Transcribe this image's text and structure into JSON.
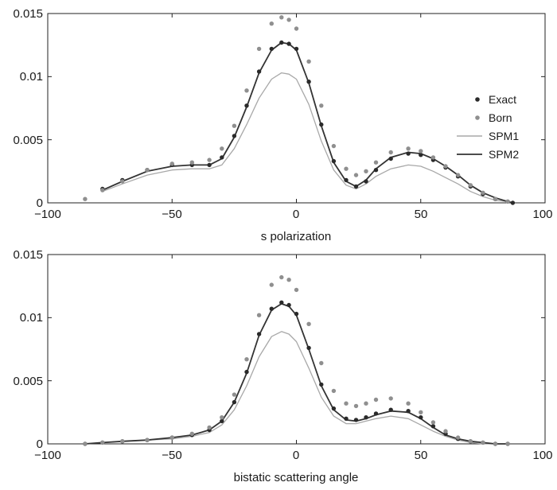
{
  "colors": {
    "exact": "#2a2a2a",
    "born": "#8f8f8f",
    "spm1": "#a8a8a8",
    "spm2": "#333333",
    "axis": "#222222"
  },
  "chart_data": [
    {
      "type": "line",
      "title": "",
      "xlabel": "s polarization",
      "ylabel": "",
      "xlim": [
        -100,
        100
      ],
      "ylim": [
        0,
        0.015
      ],
      "xticks": [
        -100,
        -50,
        0,
        50,
        100
      ],
      "xtick_labels": [
        "−100",
        "−50",
        "0",
        "50",
        "100"
      ],
      "yticks": [
        0,
        0.005,
        0.01,
        0.015
      ],
      "ytick_labels": [
        "0",
        "0.005",
        "0.01",
        "0.015"
      ],
      "grid": false,
      "legend": {
        "placement": "right",
        "entries": [
          "Exact",
          "Born",
          "SPM1",
          "SPM2"
        ]
      },
      "series": [
        {
          "name": "Exact",
          "style": "points",
          "color": "#2a2a2a",
          "x": [
            -78,
            -70,
            -60,
            -50,
            -42,
            -35,
            -30,
            -25,
            -20,
            -15,
            -10,
            -6,
            -3,
            0,
            5,
            10,
            15,
            20,
            24,
            28,
            32,
            38,
            45,
            50,
            55,
            60,
            65,
            70,
            75,
            80,
            85,
            87
          ],
          "y": [
            0.0011,
            0.0018,
            0.0026,
            0.003,
            0.003,
            0.003,
            0.0036,
            0.0053,
            0.0077,
            0.0104,
            0.0122,
            0.0127,
            0.0126,
            0.0122,
            0.0096,
            0.0062,
            0.0033,
            0.0018,
            0.0013,
            0.0017,
            0.0026,
            0.0035,
            0.0039,
            0.0038,
            0.0034,
            0.0028,
            0.0021,
            0.0013,
            0.0007,
            0.0003,
            0.0001,
            0.0
          ]
        },
        {
          "name": "Born",
          "style": "points",
          "color": "#8f8f8f",
          "x": [
            -85,
            -78,
            -70,
            -60,
            -50,
            -42,
            -35,
            -30,
            -25,
            -20,
            -15,
            -10,
            -6,
            -3,
            0,
            5,
            10,
            15,
            20,
            24,
            28,
            32,
            38,
            45,
            50,
            55,
            60,
            65,
            70,
            75,
            80,
            85
          ],
          "y": [
            0.0003,
            0.001,
            0.0017,
            0.0026,
            0.0031,
            0.0032,
            0.0034,
            0.0043,
            0.0061,
            0.0089,
            0.0122,
            0.0142,
            0.0147,
            0.0145,
            0.0138,
            0.0112,
            0.0077,
            0.0045,
            0.0027,
            0.0022,
            0.0025,
            0.0032,
            0.004,
            0.0043,
            0.0041,
            0.0036,
            0.0029,
            0.0022,
            0.0014,
            0.0008,
            0.0003,
            0.0001
          ]
        },
        {
          "name": "SPM1",
          "style": "line",
          "color": "#a8a8a8",
          "x": [
            -78,
            -70,
            -60,
            -50,
            -42,
            -35,
            -30,
            -25,
            -20,
            -15,
            -10,
            -6,
            -3,
            0,
            5,
            10,
            15,
            20,
            24,
            28,
            32,
            38,
            45,
            50,
            55,
            60,
            65,
            70,
            75,
            80,
            85,
            87
          ],
          "y": [
            0.0009,
            0.0015,
            0.0022,
            0.0026,
            0.0027,
            0.0027,
            0.003,
            0.0043,
            0.0062,
            0.0083,
            0.0098,
            0.0103,
            0.0102,
            0.0098,
            0.0078,
            0.0049,
            0.0026,
            0.0014,
            0.0011,
            0.0015,
            0.0021,
            0.0027,
            0.003,
            0.0029,
            0.0025,
            0.002,
            0.0015,
            0.0009,
            0.0005,
            0.0002,
            0.0001,
            0.0
          ]
        },
        {
          "name": "SPM2",
          "style": "line",
          "color": "#333333",
          "x": [
            -78,
            -70,
            -60,
            -50,
            -42,
            -35,
            -30,
            -25,
            -20,
            -15,
            -10,
            -6,
            -3,
            0,
            5,
            10,
            15,
            20,
            24,
            28,
            32,
            38,
            45,
            50,
            55,
            60,
            65,
            70,
            75,
            80,
            85,
            87
          ],
          "y": [
            0.001,
            0.0017,
            0.0025,
            0.0029,
            0.003,
            0.003,
            0.0035,
            0.0052,
            0.0076,
            0.0103,
            0.0121,
            0.0127,
            0.0126,
            0.0121,
            0.0095,
            0.0061,
            0.0032,
            0.0017,
            0.0013,
            0.0018,
            0.0027,
            0.0036,
            0.004,
            0.0039,
            0.0035,
            0.0029,
            0.0022,
            0.0014,
            0.0008,
            0.0004,
            0.0001,
            0.0
          ]
        }
      ]
    },
    {
      "type": "line",
      "title": "",
      "xlabel": "bistatic scattering angle",
      "ylabel": "",
      "xlim": [
        -100,
        100
      ],
      "ylim": [
        0,
        0.015
      ],
      "xticks": [
        -100,
        -50,
        0,
        50,
        100
      ],
      "xtick_labels": [
        "−100",
        "−50",
        "0",
        "50",
        "100"
      ],
      "yticks": [
        0,
        0.005,
        0.01,
        0.015
      ],
      "ytick_labels": [
        "0",
        "0.005",
        "0.01",
        "0.015"
      ],
      "grid": false,
      "series": [
        {
          "name": "Exact",
          "style": "points",
          "color": "#2a2a2a",
          "x": [
            -85,
            -78,
            -70,
            -60,
            -50,
            -42,
            -35,
            -30,
            -25,
            -20,
            -15,
            -10,
            -6,
            -3,
            0,
            5,
            10,
            15,
            20,
            24,
            28,
            32,
            38,
            45,
            50,
            55,
            60,
            65,
            70,
            75,
            80,
            85
          ],
          "y": [
            0.0,
            0.0001,
            0.0002,
            0.0003,
            0.0005,
            0.0007,
            0.0011,
            0.0018,
            0.0033,
            0.0057,
            0.0087,
            0.0107,
            0.0112,
            0.011,
            0.0103,
            0.0076,
            0.0047,
            0.0028,
            0.002,
            0.0019,
            0.0021,
            0.0024,
            0.0027,
            0.0026,
            0.0021,
            0.0014,
            0.0008,
            0.0004,
            0.0002,
            0.0001,
            0.0,
            0.0
          ]
        },
        {
          "name": "Born",
          "style": "points",
          "color": "#8f8f8f",
          "x": [
            -85,
            -78,
            -70,
            -60,
            -50,
            -42,
            -35,
            -30,
            -25,
            -20,
            -15,
            -10,
            -6,
            -3,
            0,
            5,
            10,
            15,
            20,
            24,
            28,
            32,
            38,
            45,
            50,
            55,
            60,
            65,
            70,
            75,
            80,
            85
          ],
          "y": [
            0.0,
            0.0001,
            0.0002,
            0.0003,
            0.0005,
            0.0008,
            0.0013,
            0.0021,
            0.0039,
            0.0067,
            0.0102,
            0.0126,
            0.0132,
            0.013,
            0.0122,
            0.0095,
            0.0064,
            0.0042,
            0.0032,
            0.003,
            0.0032,
            0.0035,
            0.0036,
            0.0032,
            0.0025,
            0.0017,
            0.001,
            0.0005,
            0.0002,
            0.0001,
            0.0,
            0.0
          ]
        },
        {
          "name": "SPM1",
          "style": "line",
          "color": "#a8a8a8",
          "x": [
            -85,
            -78,
            -70,
            -60,
            -50,
            -42,
            -35,
            -30,
            -25,
            -20,
            -15,
            -10,
            -6,
            -3,
            0,
            5,
            10,
            15,
            20,
            24,
            28,
            32,
            38,
            45,
            50,
            55,
            60,
            65,
            70,
            75,
            80,
            85
          ],
          "y": [
            0.0,
            0.0001,
            0.0002,
            0.0003,
            0.0004,
            0.0006,
            0.0009,
            0.0015,
            0.0027,
            0.0046,
            0.0069,
            0.0085,
            0.0089,
            0.0087,
            0.0081,
            0.006,
            0.0037,
            0.0022,
            0.0016,
            0.0016,
            0.0018,
            0.002,
            0.0022,
            0.002,
            0.0015,
            0.001,
            0.0006,
            0.0003,
            0.0001,
            0.0,
            0.0,
            0.0
          ]
        },
        {
          "name": "SPM2",
          "style": "line",
          "color": "#333333",
          "x": [
            -85,
            -78,
            -70,
            -60,
            -50,
            -42,
            -35,
            -30,
            -25,
            -20,
            -15,
            -10,
            -6,
            -3,
            0,
            5,
            10,
            15,
            20,
            24,
            28,
            32,
            38,
            45,
            50,
            55,
            60,
            65,
            70,
            75,
            80,
            85
          ],
          "y": [
            0.0,
            0.0001,
            0.0002,
            0.0003,
            0.0005,
            0.0007,
            0.0011,
            0.0018,
            0.0033,
            0.0056,
            0.0086,
            0.0106,
            0.0111,
            0.0109,
            0.0102,
            0.0075,
            0.0046,
            0.0027,
            0.0019,
            0.0018,
            0.002,
            0.0023,
            0.0026,
            0.0025,
            0.002,
            0.0013,
            0.0007,
            0.0004,
            0.0002,
            0.0001,
            0.0,
            0.0
          ]
        }
      ]
    }
  ]
}
